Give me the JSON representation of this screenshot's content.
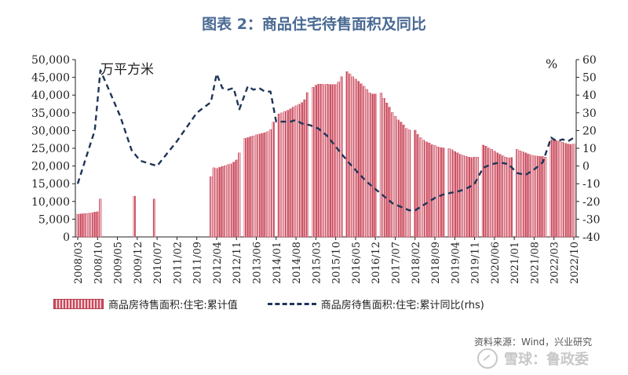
{
  "title": "图表 2：商品住宅待售面积及同比",
  "left_unit": "万平方米",
  "right_unit": "%",
  "legend": {
    "bar_label": "商品房待售面积:住宅:累计值",
    "line_label": "商品房待售面积:住宅:累计同比(rhs)"
  },
  "source": "资料来源：Wind，兴业研究",
  "watermark": "雪球：鲁政委",
  "colors": {
    "bar_fill": "#e8a2ad",
    "bar_hatch": "#c9485a",
    "line": "#1f3558",
    "title": "#4a6a93"
  },
  "chart_data": {
    "type": "bar",
    "x_tick_labels": [
      "2008/03",
      "2008/10",
      "2009/05",
      "2009/12",
      "2010/07",
      "2011/02",
      "2011/09",
      "2012/04",
      "2012/11",
      "2013/06",
      "2014/01",
      "2014/08",
      "2015/03",
      "2015/10",
      "2016/05",
      "2016/12",
      "2017/07",
      "2018/02",
      "2018/09",
      "2019/04",
      "2019/11",
      "2020/06",
      "2021/01",
      "2021/08",
      "2022/03",
      "2022/10"
    ],
    "y_left": {
      "min": 0,
      "max": 50000,
      "ticks": [
        0,
        5000,
        10000,
        15000,
        20000,
        25000,
        30000,
        35000,
        40000,
        45000,
        50000
      ]
    },
    "y_right": {
      "min": -40,
      "max": 60,
      "ticks": [
        -40,
        -30,
        -20,
        -10,
        0,
        10,
        20,
        30,
        40,
        50,
        60
      ]
    },
    "series": [
      {
        "name": "商品房待售面积:住宅:累计值",
        "axis": "left",
        "kind": "bar",
        "points": [
          [
            "2008/03",
            6400
          ],
          [
            "2008/04",
            6500
          ],
          [
            "2008/05",
            6550
          ],
          [
            "2008/06",
            6600
          ],
          [
            "2008/07",
            6700
          ],
          [
            "2008/08",
            6800
          ],
          [
            "2008/09",
            7000
          ],
          [
            "2008/10",
            7100
          ],
          [
            "2008/11",
            10700
          ],
          [
            "2009/11",
            11500
          ],
          [
            "2010/06",
            10700
          ],
          [
            "2012/02",
            17000
          ],
          [
            "2012/03",
            19500
          ],
          [
            "2012/04",
            19300
          ],
          [
            "2012/05",
            19600
          ],
          [
            "2012/06",
            19900
          ],
          [
            "2012/07",
            20100
          ],
          [
            "2012/08",
            20400
          ],
          [
            "2012/09",
            20600
          ],
          [
            "2012/10",
            21100
          ],
          [
            "2012/11",
            21700
          ],
          [
            "2012/12",
            23700
          ],
          [
            "2013/02",
            27800
          ],
          [
            "2013/03",
            28000
          ],
          [
            "2013/04",
            28300
          ],
          [
            "2013/05",
            28500
          ],
          [
            "2013/06",
            28800
          ],
          [
            "2013/07",
            29000
          ],
          [
            "2013/08",
            29200
          ],
          [
            "2013/09",
            29400
          ],
          [
            "2013/10",
            29700
          ],
          [
            "2013/11",
            30300
          ],
          [
            "2013/12",
            32400
          ],
          [
            "2014/02",
            34700
          ],
          [
            "2014/03",
            35000
          ],
          [
            "2014/04",
            35400
          ],
          [
            "2014/05",
            35700
          ],
          [
            "2014/06",
            36100
          ],
          [
            "2014/07",
            36600
          ],
          [
            "2014/08",
            37000
          ],
          [
            "2014/09",
            37400
          ],
          [
            "2014/10",
            37900
          ],
          [
            "2014/11",
            38700
          ],
          [
            "2014/12",
            40700
          ],
          [
            "2015/02",
            42200
          ],
          [
            "2015/03",
            42800
          ],
          [
            "2015/04",
            43100
          ],
          [
            "2015/05",
            43100
          ],
          [
            "2015/06",
            43000
          ],
          [
            "2015/07",
            43100
          ],
          [
            "2015/08",
            43000
          ],
          [
            "2015/09",
            43000
          ],
          [
            "2015/10",
            43000
          ],
          [
            "2015/11",
            43700
          ],
          [
            "2015/12",
            45200
          ],
          [
            "2016/02",
            46600
          ],
          [
            "2016/03",
            46000
          ],
          [
            "2016/04",
            45200
          ],
          [
            "2016/05",
            44500
          ],
          [
            "2016/06",
            43900
          ],
          [
            "2016/07",
            43200
          ],
          [
            "2016/08",
            42500
          ],
          [
            "2016/09",
            41600
          ],
          [
            "2016/10",
            40600
          ],
          [
            "2016/11",
            40300
          ],
          [
            "2016/12",
            40300
          ],
          [
            "2017/02",
            40600
          ],
          [
            "2017/03",
            39100
          ],
          [
            "2017/04",
            37800
          ],
          [
            "2017/05",
            36600
          ],
          [
            "2017/06",
            35100
          ],
          [
            "2017/07",
            34000
          ],
          [
            "2017/08",
            33000
          ],
          [
            "2017/09",
            32400
          ],
          [
            "2017/10",
            31600
          ],
          [
            "2017/11",
            30600
          ],
          [
            "2017/12",
            30200
          ],
          [
            "2018/02",
            30100
          ],
          [
            "2018/03",
            28900
          ],
          [
            "2018/04",
            28000
          ],
          [
            "2018/05",
            27300
          ],
          [
            "2018/06",
            26800
          ],
          [
            "2018/07",
            26500
          ],
          [
            "2018/08",
            26000
          ],
          [
            "2018/09",
            25800
          ],
          [
            "2018/10",
            25400
          ],
          [
            "2018/11",
            25200
          ],
          [
            "2018/12",
            25100
          ],
          [
            "2019/02",
            24900
          ],
          [
            "2019/03",
            24600
          ],
          [
            "2019/04",
            24100
          ],
          [
            "2019/05",
            23700
          ],
          [
            "2019/06",
            23300
          ],
          [
            "2019/07",
            23000
          ],
          [
            "2019/08",
            22700
          ],
          [
            "2019/09",
            22500
          ],
          [
            "2019/10",
            22400
          ],
          [
            "2019/11",
            22500
          ],
          [
            "2019/12",
            22500
          ],
          [
            "2020/02",
            25900
          ],
          [
            "2020/03",
            25600
          ],
          [
            "2020/04",
            25100
          ],
          [
            "2020/05",
            24700
          ],
          [
            "2020/06",
            24200
          ],
          [
            "2020/07",
            23700
          ],
          [
            "2020/08",
            23300
          ],
          [
            "2020/09",
            22900
          ],
          [
            "2020/10",
            22500
          ],
          [
            "2020/11",
            22300
          ],
          [
            "2020/12",
            22400
          ],
          [
            "2021/02",
            24700
          ],
          [
            "2021/03",
            24300
          ],
          [
            "2021/04",
            24000
          ],
          [
            "2021/05",
            23700
          ],
          [
            "2021/06",
            23400
          ],
          [
            "2021/07",
            23100
          ],
          [
            "2021/08",
            22900
          ],
          [
            "2021/09",
            22800
          ],
          [
            "2021/10",
            22700
          ],
          [
            "2021/11",
            22700
          ],
          [
            "2021/12",
            22500
          ],
          [
            "2022/02",
            27400
          ],
          [
            "2022/03",
            27300
          ],
          [
            "2022/04",
            27100
          ],
          [
            "2022/05",
            27000
          ],
          [
            "2022/06",
            26700
          ],
          [
            "2022/07",
            26400
          ],
          [
            "2022/08",
            26200
          ],
          [
            "2022/09",
            26100
          ],
          [
            "2022/10",
            26200
          ]
        ]
      },
      {
        "name": "商品房待售面积:住宅:累计同比(rhs)",
        "axis": "right",
        "kind": "line-dashed",
        "points": [
          [
            "2008/03",
            -10
          ],
          [
            "2008/05",
            0
          ],
          [
            "2008/07",
            10
          ],
          [
            "2008/09",
            20
          ],
          [
            "2008/11",
            54
          ],
          [
            "2009/02",
            43
          ],
          [
            "2009/06",
            28
          ],
          [
            "2009/10",
            9
          ],
          [
            "2010/01",
            3
          ],
          [
            "2010/07",
            0
          ],
          [
            "2011/02",
            14
          ],
          [
            "2011/09",
            30
          ],
          [
            "2012/02",
            36
          ],
          [
            "2012/04",
            52
          ],
          [
            "2012/06",
            44
          ],
          [
            "2012/08",
            43
          ],
          [
            "2012/10",
            44
          ],
          [
            "2012/12",
            32
          ],
          [
            "2013/03",
            45
          ],
          [
            "2013/05",
            43
          ],
          [
            "2013/07",
            44
          ],
          [
            "2013/09",
            42
          ],
          [
            "2013/11",
            42
          ],
          [
            "2014/01",
            25
          ],
          [
            "2014/03",
            25
          ],
          [
            "2014/06",
            25
          ],
          [
            "2014/08",
            26
          ],
          [
            "2014/10",
            24
          ],
          [
            "2015/01",
            23
          ],
          [
            "2015/04",
            21
          ],
          [
            "2015/07",
            17
          ],
          [
            "2015/10",
            11
          ],
          [
            "2016/02",
            3
          ],
          [
            "2016/06",
            -4
          ],
          [
            "2016/09",
            -9
          ],
          [
            "2016/12",
            -13
          ],
          [
            "2017/03",
            -17
          ],
          [
            "2017/06",
            -21
          ],
          [
            "2017/09",
            -23
          ],
          [
            "2017/12",
            -25
          ],
          [
            "2018/02",
            -25
          ],
          [
            "2018/05",
            -22
          ],
          [
            "2018/09",
            -18
          ],
          [
            "2018/12",
            -16
          ],
          [
            "2019/03",
            -15
          ],
          [
            "2019/06",
            -14
          ],
          [
            "2019/09",
            -12
          ],
          [
            "2019/11",
            -10
          ],
          [
            "2020/02",
            -1
          ],
          [
            "2020/05",
            1
          ],
          [
            "2020/08",
            2
          ],
          [
            "2020/11",
            1
          ],
          [
            "2021/02",
            -4
          ],
          [
            "2021/05",
            -5
          ],
          [
            "2021/08",
            -2
          ],
          [
            "2021/11",
            2
          ],
          [
            "2022/02",
            16
          ],
          [
            "2022/04",
            14
          ],
          [
            "2022/06",
            15
          ],
          [
            "2022/08",
            14
          ],
          [
            "2022/10",
            16
          ]
        ]
      }
    ]
  }
}
